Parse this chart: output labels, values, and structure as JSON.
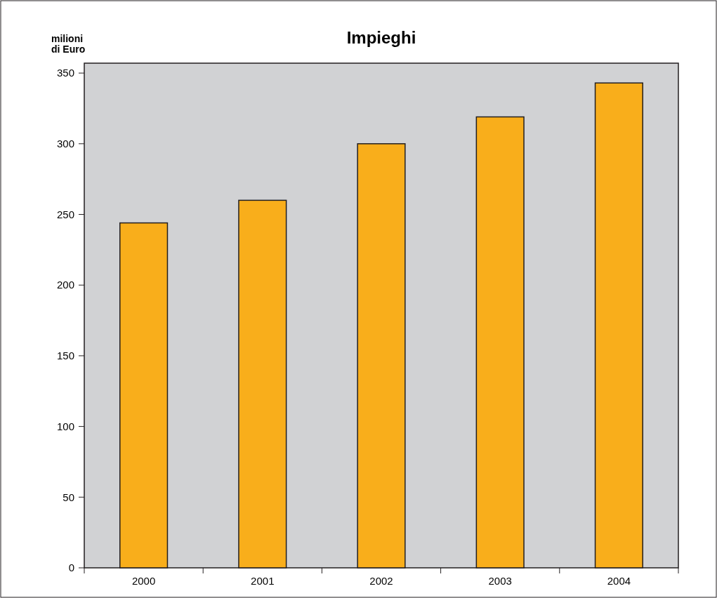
{
  "chart_data": {
    "type": "bar",
    "title": "Impieghi",
    "ylabel": "milioni\ndi Euro",
    "categories": [
      "2000",
      "2001",
      "2002",
      "2003",
      "2004"
    ],
    "values": [
      244,
      260,
      300,
      319,
      343
    ],
    "color": "#f9ae1b",
    "ylim": [
      0,
      357
    ],
    "yticks": [
      0,
      50,
      100,
      150,
      200,
      250,
      300,
      350
    ],
    "grid": false
  }
}
